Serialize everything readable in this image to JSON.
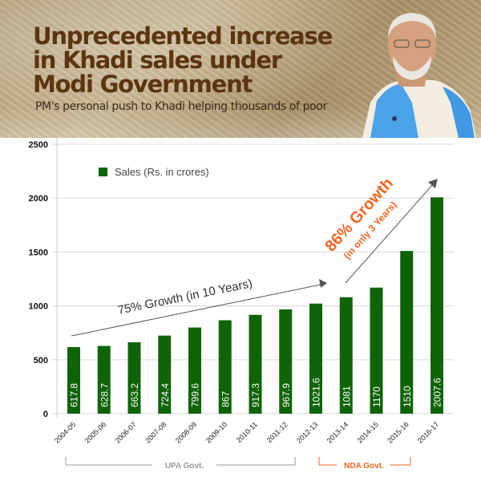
{
  "header": {
    "title_lines": [
      "Unprecedented increase",
      "in Khadi sales under",
      "Modi Government"
    ],
    "subtitle": "PM's personal push to Khadi helping thousands of poor",
    "portrait": "pm-portrait"
  },
  "colors": {
    "bar": "#106408",
    "title": "#5b3410",
    "accent_orange": "#f26522",
    "upa_gray": "#999999",
    "grid": "#dddddd"
  },
  "chart_data": {
    "type": "bar",
    "title": "Unprecedented increase in Khadi sales under Modi Government",
    "xlabel": "",
    "ylabel": "",
    "ylim": [
      0,
      2500
    ],
    "yticks": [
      0,
      500,
      1000,
      1500,
      2000,
      2500
    ],
    "grid": true,
    "legend": {
      "label": "Sales (Rs. in crores)",
      "position": "top-left"
    },
    "categories": [
      "2004-05",
      "2005-06",
      "2006-07",
      "2007-08",
      "2008-09",
      "2009-10",
      "2010-11",
      "2011-12",
      "2012-13",
      "2013-14",
      "2014-15",
      "2015-16",
      "2016-17"
    ],
    "series": [
      {
        "name": "Sales (Rs. in crores)",
        "values": [
          617.8,
          628.7,
          663.2,
          724.4,
          799.6,
          867,
          917.3,
          967.9,
          1021.6,
          1081,
          1170,
          1510,
          2007.6
        ]
      }
    ],
    "data_labels": [
      "617.8",
      "628.7",
      "663.2",
      "724.4",
      "799.6",
      "867",
      "917.3",
      "967.9",
      "1021.6",
      "1081",
      "1170",
      "1510",
      "2007.6"
    ],
    "annotations": [
      {
        "text": "75% Growth  (in 10 Years)",
        "from_category": "2004-05",
        "to_category": "2012-13"
      },
      {
        "text": "86% Growth",
        "subtext": "(in only 3 Years)",
        "from_category": "2013-14",
        "to_category": "2016-17"
      }
    ],
    "groups": [
      {
        "label": "UPA Govt.",
        "from_category": "2004-05",
        "to_category": "2012-13"
      },
      {
        "label": "NDA Govt.",
        "from_category": "2013-14",
        "to_category": "2016-17"
      }
    ]
  }
}
